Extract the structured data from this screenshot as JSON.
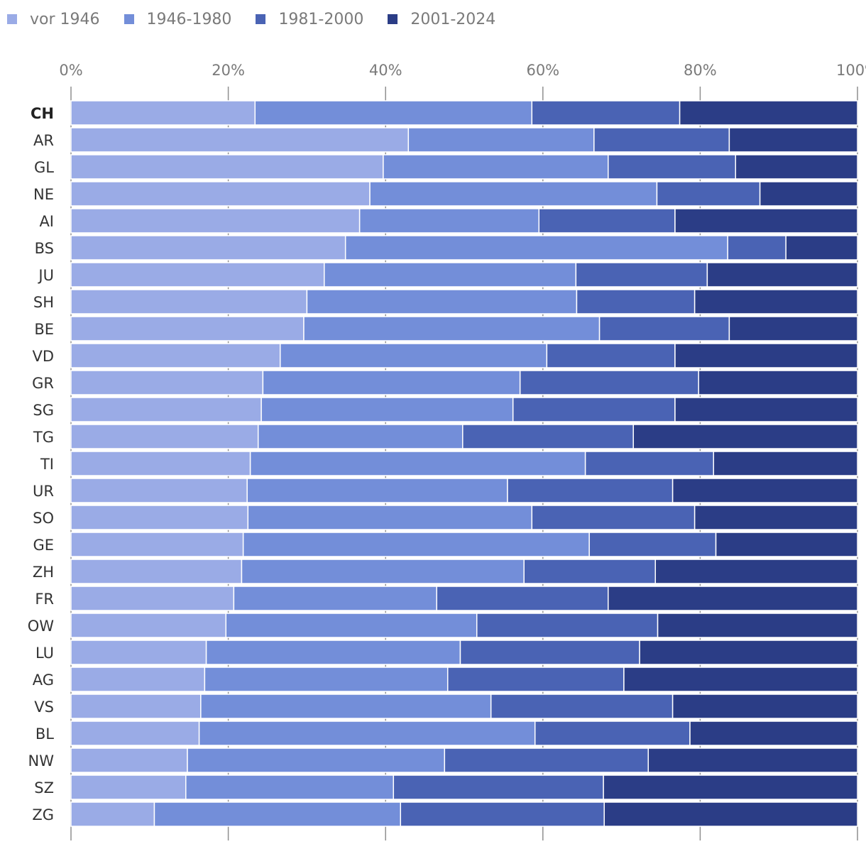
{
  "chart_data": {
    "type": "bar",
    "orientation": "horizontal",
    "stacked": true,
    "highlight_category": "CH",
    "categories": [
      "CH",
      "AR",
      "GL",
      "NE",
      "AI",
      "BS",
      "JU",
      "SH",
      "BE",
      "VD",
      "GR",
      "SG",
      "TG",
      "TI",
      "UR",
      "SO",
      "GE",
      "ZH",
      "FR",
      "OW",
      "LU",
      "AG",
      "VS",
      "BL",
      "NW",
      "SZ",
      "ZG"
    ],
    "series": [
      {
        "name": "vor 1946",
        "color": "#9aabe6",
        "values": [
          23.4,
          42.9,
          39.7,
          38.0,
          36.7,
          34.9,
          32.2,
          30.0,
          29.6,
          26.6,
          24.4,
          24.2,
          23.8,
          22.8,
          22.4,
          22.5,
          21.9,
          21.7,
          20.7,
          19.7,
          17.2,
          17.0,
          16.5,
          16.3,
          14.8,
          14.6,
          10.6
        ]
      },
      {
        "name": "1946-1980",
        "color": "#738ed9",
        "values": [
          35.2,
          23.6,
          28.6,
          36.5,
          22.8,
          48.6,
          32.0,
          34.3,
          37.6,
          33.9,
          32.7,
          32.0,
          26.0,
          42.6,
          33.1,
          36.1,
          44.0,
          35.9,
          25.8,
          31.9,
          32.3,
          30.9,
          36.9,
          42.7,
          32.7,
          26.4,
          31.3
        ]
      },
      {
        "name": "1981-2000",
        "color": "#4a63b4",
        "values": [
          18.8,
          17.2,
          16.2,
          13.1,
          17.3,
          7.4,
          16.7,
          15.0,
          16.5,
          16.3,
          22.7,
          20.6,
          21.7,
          16.3,
          21.0,
          20.7,
          16.1,
          16.7,
          21.8,
          23.0,
          22.8,
          22.4,
          23.1,
          19.7,
          25.9,
          26.7,
          25.9
        ]
      },
      {
        "name": "2001-2024",
        "color": "#2b3d86",
        "values": [
          22.6,
          16.3,
          15.5,
          12.4,
          23.2,
          9.1,
          19.1,
          20.7,
          16.3,
          23.2,
          20.2,
          23.2,
          28.5,
          18.3,
          23.5,
          20.7,
          18.0,
          25.7,
          31.7,
          25.4,
          27.7,
          29.7,
          23.5,
          21.3,
          26.6,
          32.3,
          32.2
        ]
      }
    ],
    "xaxis": {
      "range": [
        0,
        100
      ],
      "ticks": [
        0,
        20,
        40,
        60,
        80,
        100
      ],
      "tick_labels": [
        "0%",
        "20%",
        "40%",
        "60%",
        "80%",
        "100%"
      ],
      "position": "top",
      "grid": true
    },
    "title": "",
    "xlabel": "",
    "ylabel": "",
    "legend_position": "top-left"
  }
}
